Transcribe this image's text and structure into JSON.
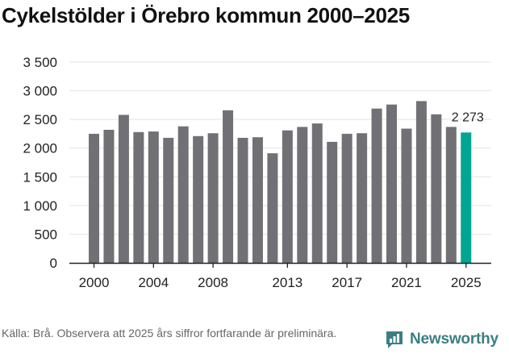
{
  "title": "Cykelstölder i Örebro kommun 2000–2025",
  "source": "Källa: Brå. Observera att 2025 års siffror fortfarande är preliminära.",
  "brand": {
    "name": "Newsworthy",
    "icon": "newsworthy-logo-icon"
  },
  "colors": {
    "bar": "#717175",
    "highlight": "#00a693",
    "grid": "#e3e3e3",
    "axis": "#222222"
  },
  "chart_data": {
    "type": "bar",
    "title": "Cykelstölder i Örebro kommun 2000–2025",
    "xlabel": "",
    "ylabel": "",
    "ylim": [
      0,
      3500
    ],
    "yticks": [
      0,
      500,
      1000,
      1500,
      2000,
      2500,
      3000,
      3500
    ],
    "ytick_labels": [
      "0",
      "500",
      "1 000",
      "1 500",
      "2 000",
      "2 500",
      "3 000",
      "3 500"
    ],
    "xtick_labels": [
      "2000",
      "2004",
      "2008",
      "2013",
      "2017",
      "2021",
      "2025"
    ],
    "grid": true,
    "categories": [
      "2000",
      "2001",
      "2002",
      "2003",
      "2004",
      "2005",
      "2006",
      "2007",
      "2008",
      "2009",
      "2010",
      "2011",
      "2012",
      "2013",
      "2014",
      "2015",
      "2016",
      "2017",
      "2018",
      "2019",
      "2020",
      "2021",
      "2022",
      "2023",
      "2024",
      "2025"
    ],
    "values": [
      2250,
      2320,
      2580,
      2280,
      2290,
      2180,
      2380,
      2210,
      2260,
      2660,
      2180,
      2190,
      1910,
      2310,
      2370,
      2430,
      2110,
      2250,
      2260,
      2690,
      2760,
      2340,
      2820,
      2590,
      2370,
      2273
    ],
    "highlight_index": 25,
    "annotation": {
      "index": 25,
      "text": "2 273"
    }
  }
}
